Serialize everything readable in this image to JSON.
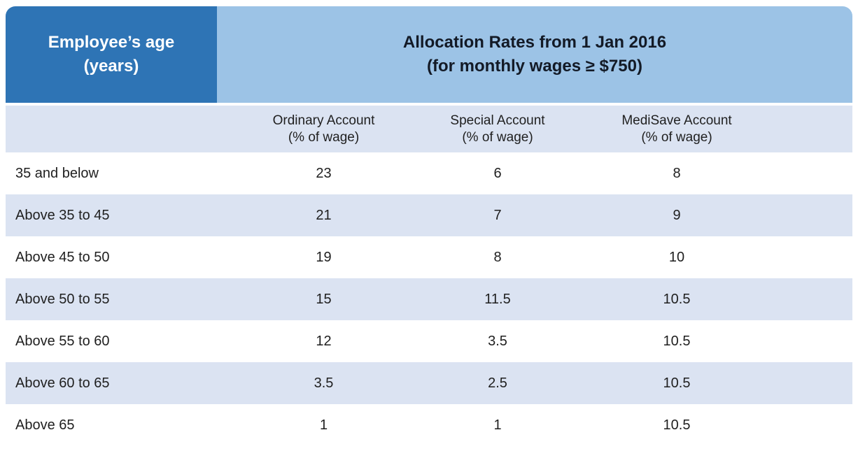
{
  "colors": {
    "header_dark_blue": "#2E74B5",
    "header_light_blue": "#9CC3E6",
    "row_stripe": "#DBE3F2",
    "header_text_dark": "#131A26",
    "header_text_light": "#FFFFFF",
    "body_text": "#1F1F1F"
  },
  "table": {
    "corner_header": {
      "line1": "Employee’s age",
      "line2": "(years)"
    },
    "main_header": {
      "line1": "Allocation Rates from 1 Jan 2016",
      "line2": "(for monthly wages ≥ $750)"
    },
    "column_headers": [
      {
        "name": "Ordinary Account",
        "unit": "(% of wage)"
      },
      {
        "name": "Special Account",
        "unit": "(% of wage)"
      },
      {
        "name": "MediSave Account",
        "unit": "(% of wage)"
      }
    ],
    "rows": [
      {
        "age": "35 and below",
        "ordinary": "23",
        "special": "6",
        "medisave": "8"
      },
      {
        "age": "Above 35 to 45",
        "ordinary": "21",
        "special": "7",
        "medisave": "9"
      },
      {
        "age": "Above 45 to 50",
        "ordinary": "19",
        "special": "8",
        "medisave": "10"
      },
      {
        "age": "Above 50 to 55",
        "ordinary": "15",
        "special": "11.5",
        "medisave": "10.5"
      },
      {
        "age": "Above 55 to 60",
        "ordinary": "12",
        "special": "3.5",
        "medisave": "10.5"
      },
      {
        "age": "Above 60 to 65",
        "ordinary": "3.5",
        "special": "2.5",
        "medisave": "10.5"
      },
      {
        "age": "Above 65",
        "ordinary": "1",
        "special": "1",
        "medisave": "10.5"
      }
    ]
  },
  "chart_data": {
    "type": "table",
    "title": "Allocation Rates from 1 Jan 2016 (for monthly wages ≥ $750)",
    "row_header": "Employee’s age (years)",
    "columns": [
      "Ordinary Account (% of wage)",
      "Special Account (% of wage)",
      "MediSave Account (% of wage)"
    ],
    "categories": [
      "35 and below",
      "Above 35 to 45",
      "Above 45 to 50",
      "Above 50 to 55",
      "Above 55 to 60",
      "Above 60 to 65",
      "Above 65"
    ],
    "series": [
      {
        "name": "Ordinary Account (% of wage)",
        "values": [
          23,
          21,
          19,
          15,
          12,
          3.5,
          1
        ]
      },
      {
        "name": "Special Account (% of wage)",
        "values": [
          6,
          7,
          8,
          11.5,
          3.5,
          2.5,
          1
        ]
      },
      {
        "name": "MediSave Account (% of wage)",
        "values": [
          8,
          9,
          10,
          10.5,
          10.5,
          10.5,
          10.5
        ]
      }
    ]
  }
}
